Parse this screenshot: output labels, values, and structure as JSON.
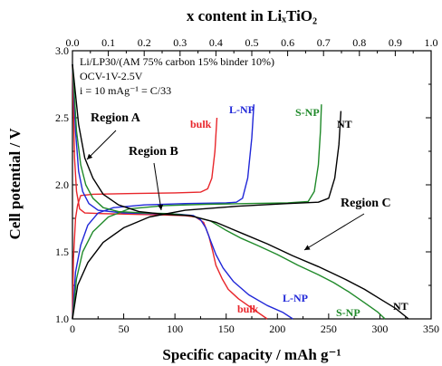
{
  "chart_data": {
    "type": "line",
    "xlabel": "Specific capacity / mAh g⁻¹",
    "ylabel": "Cell potential / V",
    "top_xlabel": "x content in LiₓTiO₂",
    "xlim": [
      0,
      350
    ],
    "ylim": [
      1.0,
      3.0
    ],
    "top_xlim": [
      0,
      1.0
    ],
    "x_ticks": [
      "0",
      "50",
      "100",
      "150",
      "200",
      "250",
      "300",
      "350"
    ],
    "y_ticks": [
      "1.0",
      "1.5",
      "2.0",
      "2.5",
      "3.0"
    ],
    "top_x_ticks": [
      "0.0",
      "0.1",
      "0.2",
      "0.3",
      "0.4",
      "0.5",
      "0.6",
      "0.7",
      "0.8",
      "0.9",
      "1.0"
    ],
    "grid": false,
    "info_lines": [
      "Li/LP30/(AM 75% carbon 15% binder 10%)",
      "OCV-1V-2.5V",
      "i = 10 mAg⁻¹ = C/33"
    ],
    "annotations": [
      "Region A",
      "Region B",
      "Region C"
    ],
    "series": [
      {
        "name": "bulk",
        "color": "#e8262b",
        "discharge": [
          [
            0,
            2.9
          ],
          [
            2,
            2.2
          ],
          [
            4,
            1.95
          ],
          [
            7,
            1.82
          ],
          [
            12,
            1.79
          ],
          [
            30,
            1.785
          ],
          [
            60,
            1.78
          ],
          [
            90,
            1.775
          ],
          [
            110,
            1.77
          ],
          [
            120,
            1.76
          ],
          [
            128,
            1.72
          ],
          [
            133,
            1.62
          ],
          [
            137,
            1.5
          ],
          [
            140,
            1.4
          ],
          [
            146,
            1.3
          ],
          [
            152,
            1.22
          ],
          [
            162,
            1.15
          ],
          [
            175,
            1.08
          ],
          [
            190,
            1.0
          ]
        ],
        "charge": [
          [
            0,
            1.0
          ],
          [
            1,
            1.45
          ],
          [
            3,
            1.75
          ],
          [
            5,
            1.85
          ],
          [
            8,
            1.92
          ],
          [
            20,
            1.93
          ],
          [
            60,
            1.935
          ],
          [
            100,
            1.94
          ],
          [
            125,
            1.945
          ],
          [
            132,
            1.97
          ],
          [
            136,
            2.05
          ],
          [
            139,
            2.25
          ],
          [
            141,
            2.5
          ]
        ]
      },
      {
        "name": "L-NP",
        "color": "#2027d8",
        "discharge": [
          [
            0,
            2.9
          ],
          [
            3,
            2.4
          ],
          [
            6,
            2.1
          ],
          [
            10,
            1.95
          ],
          [
            16,
            1.86
          ],
          [
            25,
            1.81
          ],
          [
            50,
            1.79
          ],
          [
            80,
            1.785
          ],
          [
            105,
            1.78
          ],
          [
            118,
            1.77
          ],
          [
            125,
            1.74
          ],
          [
            130,
            1.68
          ],
          [
            135,
            1.58
          ],
          [
            140,
            1.48
          ],
          [
            147,
            1.38
          ],
          [
            157,
            1.28
          ],
          [
            172,
            1.18
          ],
          [
            190,
            1.1
          ],
          [
            205,
            1.05
          ],
          [
            215,
            1.0
          ]
        ],
        "charge": [
          [
            0,
            1.0
          ],
          [
            3,
            1.35
          ],
          [
            8,
            1.55
          ],
          [
            15,
            1.7
          ],
          [
            25,
            1.79
          ],
          [
            40,
            1.83
          ],
          [
            70,
            1.85
          ],
          [
            110,
            1.86
          ],
          [
            150,
            1.865
          ],
          [
            160,
            1.87
          ],
          [
            166,
            1.9
          ],
          [
            171,
            2.05
          ],
          [
            175,
            2.35
          ],
          [
            177,
            2.6
          ]
        ]
      },
      {
        "name": "S-NP",
        "color": "#208a2a",
        "discharge": [
          [
            0,
            2.9
          ],
          [
            4,
            2.4
          ],
          [
            8,
            2.15
          ],
          [
            13,
            2.0
          ],
          [
            20,
            1.9
          ],
          [
            30,
            1.83
          ],
          [
            45,
            1.8
          ],
          [
            70,
            1.79
          ],
          [
            95,
            1.785
          ],
          [
            115,
            1.77
          ],
          [
            135,
            1.73
          ],
          [
            150,
            1.66
          ],
          [
            165,
            1.6
          ],
          [
            180,
            1.55
          ],
          [
            200,
            1.48
          ],
          [
            220,
            1.4
          ],
          [
            240,
            1.33
          ],
          [
            255,
            1.27
          ],
          [
            270,
            1.2
          ],
          [
            285,
            1.12
          ],
          [
            298,
            1.05
          ],
          [
            305,
            1.0
          ]
        ],
        "charge": [
          [
            0,
            1.0
          ],
          [
            4,
            1.3
          ],
          [
            10,
            1.5
          ],
          [
            20,
            1.65
          ],
          [
            35,
            1.76
          ],
          [
            55,
            1.82
          ],
          [
            90,
            1.845
          ],
          [
            130,
            1.855
          ],
          [
            170,
            1.86
          ],
          [
            210,
            1.865
          ],
          [
            230,
            1.875
          ],
          [
            236,
            1.95
          ],
          [
            240,
            2.15
          ],
          [
            242,
            2.4
          ],
          [
            243,
            2.6
          ]
        ]
      },
      {
        "name": "NT",
        "color": "#000000",
        "discharge": [
          [
            0,
            2.9
          ],
          [
            6,
            2.45
          ],
          [
            12,
            2.2
          ],
          [
            20,
            2.05
          ],
          [
            30,
            1.93
          ],
          [
            45,
            1.85
          ],
          [
            65,
            1.8
          ],
          [
            90,
            1.78
          ],
          [
            115,
            1.77
          ],
          [
            140,
            1.72
          ],
          [
            165,
            1.64
          ],
          [
            190,
            1.56
          ],
          [
            215,
            1.47
          ],
          [
            240,
            1.39
          ],
          [
            265,
            1.3
          ],
          [
            285,
            1.22
          ],
          [
            300,
            1.15
          ],
          [
            315,
            1.08
          ],
          [
            328,
            1.0
          ]
        ],
        "charge": [
          [
            0,
            1.0
          ],
          [
            5,
            1.25
          ],
          [
            15,
            1.42
          ],
          [
            30,
            1.57
          ],
          [
            50,
            1.68
          ],
          [
            75,
            1.76
          ],
          [
            110,
            1.81
          ],
          [
            160,
            1.84
          ],
          [
            210,
            1.86
          ],
          [
            240,
            1.87
          ],
          [
            250,
            1.9
          ],
          [
            256,
            2.05
          ],
          [
            260,
            2.3
          ],
          [
            262,
            2.55
          ]
        ]
      }
    ]
  }
}
